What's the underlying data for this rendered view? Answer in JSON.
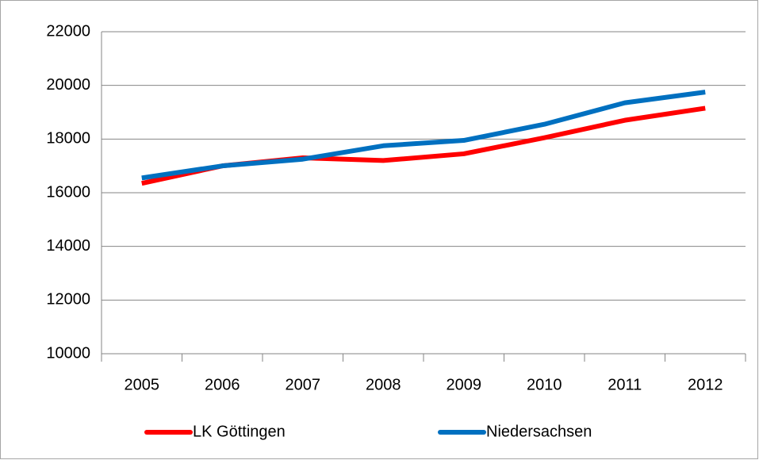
{
  "chart_data": {
    "type": "line",
    "categories": [
      "2005",
      "2006",
      "2007",
      "2008",
      "2009",
      "2010",
      "2011",
      "2012"
    ],
    "series": [
      {
        "name": "LK Göttingen",
        "color": "#ff0000",
        "values": [
          16350,
          17000,
          17300,
          17200,
          17450,
          18050,
          18700,
          19150
        ]
      },
      {
        "name": "Niedersachsen",
        "color": "#0070c0",
        "values": [
          16550,
          17000,
          17250,
          17750,
          17950,
          18550,
          19350,
          19750
        ]
      }
    ],
    "ylim": [
      10000,
      22000
    ],
    "yticks": [
      10000,
      12000,
      14000,
      16000,
      18000,
      20000,
      22000
    ],
    "grid": true,
    "legend": "bottom"
  }
}
